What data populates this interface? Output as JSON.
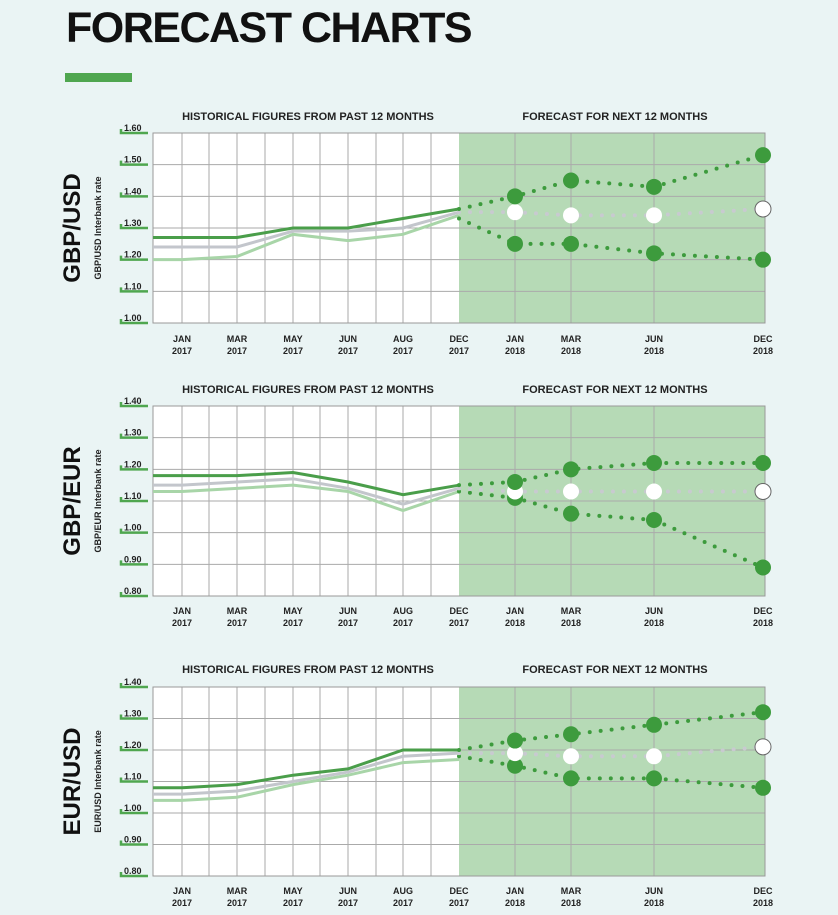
{
  "page": {
    "title": "FORECAST CHARTS"
  },
  "colors": {
    "background": "#eaf4f4",
    "forecast_panel": "#b6dab6",
    "hist_high": "#4a9e4a",
    "hist_mid": "#c3c6cc",
    "hist_low": "#a8d5a8",
    "forecast_high": "#3d9b3d",
    "forecast_low": "#3d9b3d",
    "forecast_mid": "#ffffff",
    "grid": "#aaaaaa",
    "tick": "#4fa64f",
    "title_rule": "#4fa64f"
  },
  "chart_data": [
    {
      "type": "line",
      "title": "GBP/USD",
      "ylabel": "GBP/USD Interbank rate",
      "historical_label": "HISTORICAL FIGURES FROM PAST 12 MONTHS",
      "forecast_label": "FORECAST FOR NEXT 12 MONTHS",
      "ylim": [
        1.0,
        1.6
      ],
      "yticks": [
        "1.00",
        "1.10",
        "1.20",
        "1.30",
        "1.40",
        "1.50",
        "1.60"
      ],
      "x_labels": [
        {
          "m": "JAN",
          "y": "2017"
        },
        {
          "m": "MAR",
          "y": "2017"
        },
        {
          "m": "MAY",
          "y": "2017"
        },
        {
          "m": "JUN",
          "y": "2017"
        },
        {
          "m": "AUG",
          "y": "2017"
        },
        {
          "m": "DEC",
          "y": "2017"
        },
        {
          "m": "JAN",
          "y": "2018"
        },
        {
          "m": "MAR",
          "y": "2018"
        },
        {
          "m": "JUN",
          "y": "2018"
        },
        {
          "m": "DEC",
          "y": "2018"
        }
      ],
      "historical_series": [
        {
          "role": "high",
          "values": [
            1.27,
            1.27,
            1.27,
            1.3,
            1.3,
            1.33,
            1.36
          ]
        },
        {
          "role": "mid",
          "values": [
            1.24,
            1.24,
            1.24,
            1.29,
            1.29,
            1.3,
            1.35
          ]
        },
        {
          "role": "low",
          "values": [
            1.2,
            1.2,
            1.21,
            1.28,
            1.26,
            1.28,
            1.34
          ]
        }
      ],
      "forecast_series": [
        {
          "role": "high",
          "values": [
            1.36,
            1.4,
            1.45,
            1.43,
            1.53
          ]
        },
        {
          "role": "mid",
          "values": [
            1.35,
            1.35,
            1.34,
            1.34,
            1.36
          ]
        },
        {
          "role": "low",
          "values": [
            1.33,
            1.25,
            1.25,
            1.22,
            1.2
          ]
        }
      ]
    },
    {
      "type": "line",
      "title": "GBP/EUR",
      "ylabel": "GBP/EUR Interbank rate",
      "historical_label": "HISTORICAL FIGURES FROM PAST 12 MONTHS",
      "forecast_label": "FORECAST FOR NEXT 12 MONTHS",
      "ylim": [
        0.8,
        1.4
      ],
      "yticks": [
        "0.80",
        "0.90",
        "1.00",
        "1.10",
        "1.20",
        "1.30",
        "1.40"
      ],
      "x_labels": [
        {
          "m": "JAN",
          "y": "2017"
        },
        {
          "m": "MAR",
          "y": "2017"
        },
        {
          "m": "MAY",
          "y": "2017"
        },
        {
          "m": "JUN",
          "y": "2017"
        },
        {
          "m": "AUG",
          "y": "2017"
        },
        {
          "m": "DEC",
          "y": "2017"
        },
        {
          "m": "JAN",
          "y": "2018"
        },
        {
          "m": "MAR",
          "y": "2018"
        },
        {
          "m": "JUN",
          "y": "2018"
        },
        {
          "m": "DEC",
          "y": "2018"
        }
      ],
      "historical_series": [
        {
          "role": "high",
          "values": [
            1.18,
            1.18,
            1.18,
            1.19,
            1.16,
            1.12,
            1.15
          ]
        },
        {
          "role": "mid",
          "values": [
            1.15,
            1.15,
            1.16,
            1.17,
            1.14,
            1.09,
            1.14
          ]
        },
        {
          "role": "low",
          "values": [
            1.13,
            1.13,
            1.14,
            1.15,
            1.13,
            1.07,
            1.13
          ]
        }
      ],
      "forecast_series": [
        {
          "role": "high",
          "values": [
            1.15,
            1.16,
            1.2,
            1.22,
            1.22
          ]
        },
        {
          "role": "mid",
          "values": [
            1.14,
            1.13,
            1.13,
            1.13,
            1.13
          ]
        },
        {
          "role": "low",
          "values": [
            1.13,
            1.11,
            1.06,
            1.04,
            0.89
          ]
        }
      ]
    },
    {
      "type": "line",
      "title": "EUR/USD",
      "ylabel": "EUR/USD Interbank rate",
      "historical_label": "HISTORICAL FIGURES FROM PAST 12 MONTHS",
      "forecast_label": "FORECAST FOR NEXT 12 MONTHS",
      "ylim": [
        0.8,
        1.4
      ],
      "yticks": [
        "0.80",
        "0.90",
        "1.00",
        "1.10",
        "1.20",
        "1.30",
        "1.40"
      ],
      "x_labels": [
        {
          "m": "JAN",
          "y": "2017"
        },
        {
          "m": "MAR",
          "y": "2017"
        },
        {
          "m": "MAY",
          "y": "2017"
        },
        {
          "m": "JUN",
          "y": "2017"
        },
        {
          "m": "AUG",
          "y": "2017"
        },
        {
          "m": "DEC",
          "y": "2017"
        },
        {
          "m": "JAN",
          "y": "2018"
        },
        {
          "m": "MAR",
          "y": "2018"
        },
        {
          "m": "JUN",
          "y": "2018"
        },
        {
          "m": "DEC",
          "y": "2018"
        }
      ],
      "historical_series": [
        {
          "role": "high",
          "values": [
            1.08,
            1.08,
            1.09,
            1.12,
            1.14,
            1.2,
            1.2
          ]
        },
        {
          "role": "mid",
          "values": [
            1.06,
            1.06,
            1.07,
            1.1,
            1.13,
            1.18,
            1.19
          ]
        },
        {
          "role": "low",
          "values": [
            1.04,
            1.04,
            1.05,
            1.09,
            1.12,
            1.16,
            1.17
          ]
        }
      ],
      "forecast_series": [
        {
          "role": "high",
          "values": [
            1.2,
            1.23,
            1.25,
            1.28,
            1.32
          ]
        },
        {
          "role": "mid",
          "values": [
            1.19,
            1.19,
            1.18,
            1.18,
            1.21
          ]
        },
        {
          "role": "low",
          "values": [
            1.18,
            1.15,
            1.11,
            1.11,
            1.08
          ]
        }
      ]
    }
  ]
}
